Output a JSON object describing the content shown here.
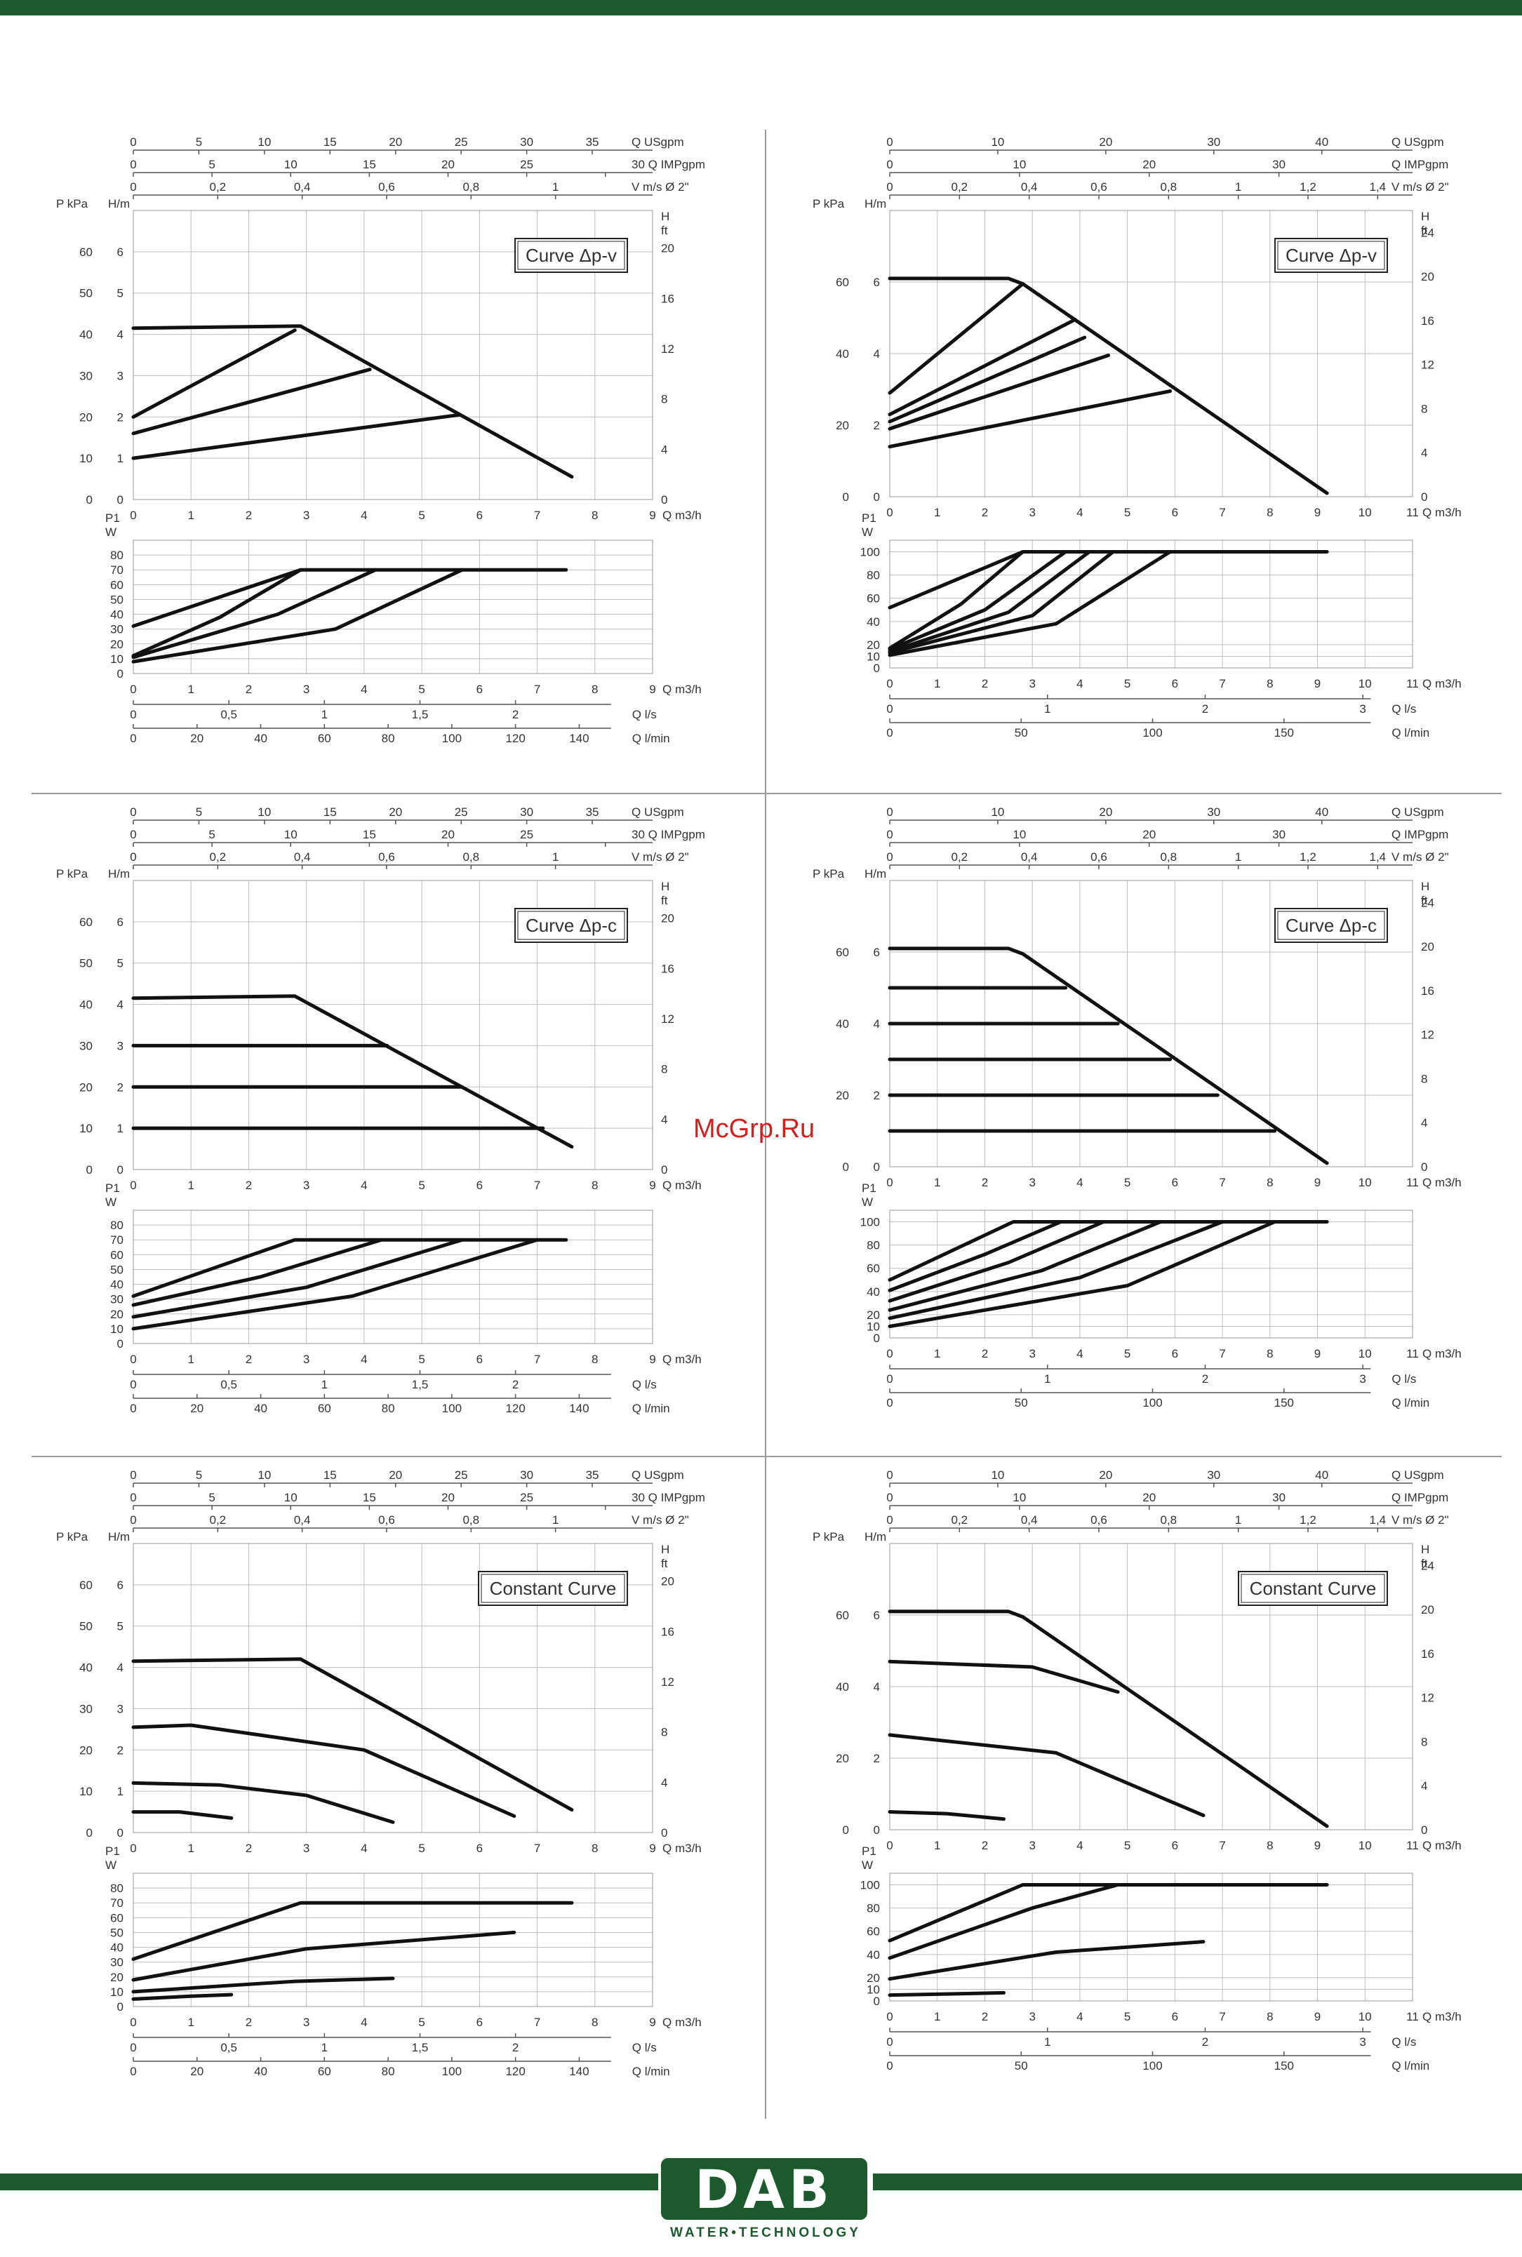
{
  "page": {
    "watermark": "McGrp.Ru",
    "brand": {
      "name": "DAB",
      "tagline": "WATER•TECHNOLOGY"
    },
    "colors": {
      "green": "#1c5a2e",
      "curve": "#111111",
      "grid": "#bdbdbd",
      "watermark": "#d21f1f"
    }
  },
  "labels": {
    "q_usgpm": "Q USgpm",
    "q_impgpm": "Q IMPgpm",
    "v": "V m/s Ø 2\"",
    "pkpa": "P kPa",
    "hm": "H/m",
    "h": "H",
    "ft": "ft",
    "qm3h": "Q m3/h",
    "p1": "P1",
    "w": "W",
    "qls": "Q l/s",
    "qlmin": "Q l/min"
  },
  "panel_types": {
    "small": {
      "q_max": 9,
      "q_ticks": [
        "0",
        "1",
        "2",
        "3",
        "4",
        "5",
        "6",
        "7",
        "8",
        "9"
      ],
      "usgpm_ticks": [
        "0",
        "5",
        "10",
        "15",
        "20",
        "25",
        "30",
        "35"
      ],
      "usgpm_max": 39.6,
      "imp_ticks": [
        "0",
        "5",
        "10",
        "15",
        "20",
        "25",
        "30"
      ],
      "imp_max": 33,
      "imp_last_prefix": "30",
      "v_ticks": [
        "0",
        "0,2",
        "0,4",
        "0,6",
        "0,8",
        "1"
      ],
      "v_max": 1.23,
      "p_ticks": [
        "0",
        "10",
        "20",
        "30",
        "40",
        "50",
        "60"
      ],
      "h_ticks": [
        "0",
        "1",
        "2",
        "3",
        "4",
        "5",
        "6"
      ],
      "h_max": 7,
      "ft_ticks": [
        "0",
        "4",
        "8",
        "12",
        "16",
        "20"
      ],
      "ft_max": 23,
      "p1_ticks": [
        "0",
        "10",
        "20",
        "30",
        "40",
        "50",
        "60",
        "70",
        "80"
      ],
      "p1_max": 90,
      "ls_ticks": [
        "0",
        "0,5",
        "1",
        "1,5",
        "2"
      ],
      "ls_max": 2.5,
      "lmin_ticks": [
        "0",
        "20",
        "40",
        "60",
        "80",
        "100",
        "120",
        "140"
      ],
      "lmin_max": 150
    },
    "large": {
      "q_max": 11,
      "q_ticks": [
        "0",
        "1",
        "2",
        "3",
        "4",
        "5",
        "6",
        "7",
        "8",
        "9",
        "10",
        "11"
      ],
      "usgpm_ticks": [
        "0",
        "10",
        "20",
        "30",
        "40"
      ],
      "usgpm_max": 48.4,
      "imp_ticks": [
        "0",
        "10",
        "20",
        "30"
      ],
      "imp_max": 40.3,
      "imp_last_prefix": "",
      "v_ticks": [
        "0",
        "0,2",
        "0,4",
        "0,6",
        "0,8",
        "1",
        "1,2",
        "1,4"
      ],
      "v_max": 1.5,
      "p_ticks": [
        "0",
        "20",
        "40",
        "60"
      ],
      "h_ticks": [
        "0",
        "2",
        "4",
        "6"
      ],
      "h_max": 8,
      "ft_ticks": [
        "0",
        "4",
        "8",
        "12",
        "16",
        "20",
        "24"
      ],
      "ft_max": 26,
      "p1_ticks": [
        "0",
        "10",
        "20",
        "40",
        "60",
        "80",
        "100"
      ],
      "p1_max": 110,
      "ls_ticks": [
        "0",
        "1",
        "2",
        "3"
      ],
      "ls_max": 3.05,
      "lmin_ticks": [
        "0",
        "50",
        "100",
        "150"
      ],
      "lmin_max": 183
    }
  },
  "chart_data": [
    {
      "type": "line",
      "panel": "small",
      "title": "Curve Δp-v",
      "head": [
        {
          "x": [
            0,
            2.9,
            7.6
          ],
          "y": [
            4.15,
            4.2,
            0.55
          ]
        },
        {
          "x": [
            0,
            2.8
          ],
          "y": [
            2.0,
            4.1
          ]
        },
        {
          "x": [
            0,
            4.1
          ],
          "y": [
            1.6,
            3.15
          ]
        },
        {
          "x": [
            0,
            5.65
          ],
          "y": [
            1.0,
            2.05
          ]
        }
      ],
      "power": [
        {
          "x": [
            0,
            2.9,
            7.5
          ],
          "y": [
            32,
            70,
            70
          ]
        },
        {
          "x": [
            0,
            1.5,
            2.9
          ],
          "y": [
            12,
            38,
            70
          ]
        },
        {
          "x": [
            0,
            2.5,
            4.2
          ],
          "y": [
            11,
            40,
            70
          ]
        },
        {
          "x": [
            0,
            3.5,
            5.7
          ],
          "y": [
            8,
            30,
            70
          ]
        }
      ]
    },
    {
      "type": "line",
      "panel": "large",
      "title": "Curve Δp-v",
      "head": [
        {
          "x": [
            0,
            2.5,
            2.8,
            9.2
          ],
          "y": [
            6.1,
            6.1,
            5.95,
            0.1
          ]
        },
        {
          "x": [
            0,
            2.8
          ],
          "y": [
            2.9,
            5.95
          ]
        },
        {
          "x": [
            0,
            3.9
          ],
          "y": [
            2.3,
            4.95
          ]
        },
        {
          "x": [
            0,
            4.1
          ],
          "y": [
            2.1,
            4.45
          ]
        },
        {
          "x": [
            0,
            4.6
          ],
          "y": [
            1.9,
            3.95
          ]
        },
        {
          "x": [
            0,
            5.9
          ],
          "y": [
            1.4,
            2.95
          ]
        }
      ],
      "power": [
        {
          "x": [
            0,
            2.8,
            9.2
          ],
          "y": [
            52,
            100,
            100
          ]
        },
        {
          "x": [
            0,
            1.5,
            2.8
          ],
          "y": [
            17,
            55,
            100
          ]
        },
        {
          "x": [
            0,
            2.0,
            3.7
          ],
          "y": [
            16,
            50,
            100
          ]
        },
        {
          "x": [
            0,
            2.5,
            4.2
          ],
          "y": [
            14,
            48,
            100
          ]
        },
        {
          "x": [
            0,
            3.0,
            4.7
          ],
          "y": [
            13,
            45,
            100
          ]
        },
        {
          "x": [
            0,
            3.5,
            5.9
          ],
          "y": [
            11,
            38,
            100
          ]
        }
      ]
    },
    {
      "type": "line",
      "panel": "small",
      "title": "Curve Δp-c",
      "head": [
        {
          "x": [
            0,
            2.8,
            7.6
          ],
          "y": [
            4.15,
            4.2,
            0.55
          ]
        },
        {
          "x": [
            0,
            4.4
          ],
          "y": [
            3.0,
            3.0
          ]
        },
        {
          "x": [
            0,
            5.7
          ],
          "y": [
            2.0,
            2.0
          ]
        },
        {
          "x": [
            0,
            7.1
          ],
          "y": [
            1.0,
            1.0
          ]
        }
      ],
      "power": [
        {
          "x": [
            0,
            2.8,
            7.5
          ],
          "y": [
            32,
            70,
            70
          ]
        },
        {
          "x": [
            0,
            2.2,
            4.3
          ],
          "y": [
            26,
            45,
            70
          ]
        },
        {
          "x": [
            0,
            3.0,
            5.7
          ],
          "y": [
            18,
            38,
            70
          ]
        },
        {
          "x": [
            0,
            3.8,
            7.0
          ],
          "y": [
            10,
            32,
            70
          ]
        }
      ]
    },
    {
      "type": "line",
      "panel": "large",
      "title": "Curve Δp-c",
      "head": [
        {
          "x": [
            0,
            2.5,
            2.8,
            9.2
          ],
          "y": [
            6.1,
            6.1,
            5.95,
            0.1
          ]
        },
        {
          "x": [
            0,
            3.7
          ],
          "y": [
            5.0,
            5.0
          ]
        },
        {
          "x": [
            0,
            4.8
          ],
          "y": [
            4.0,
            4.0
          ]
        },
        {
          "x": [
            0,
            5.9
          ],
          "y": [
            3.0,
            3.0
          ]
        },
        {
          "x": [
            0,
            6.9
          ],
          "y": [
            2.0,
            2.0
          ]
        },
        {
          "x": [
            0,
            8.1
          ],
          "y": [
            1.0,
            1.0
          ]
        }
      ],
      "power": [
        {
          "x": [
            0,
            2.6,
            9.2
          ],
          "y": [
            50,
            100,
            100
          ]
        },
        {
          "x": [
            0,
            2.0,
            3.6
          ],
          "y": [
            41,
            72,
            100
          ]
        },
        {
          "x": [
            0,
            2.5,
            4.5
          ],
          "y": [
            32,
            65,
            100
          ]
        },
        {
          "x": [
            0,
            3.2,
            5.7
          ],
          "y": [
            24,
            58,
            100
          ]
        },
        {
          "x": [
            0,
            4.0,
            7.0
          ],
          "y": [
            17,
            52,
            100
          ]
        },
        {
          "x": [
            0,
            5.0,
            8.1
          ],
          "y": [
            10,
            45,
            100
          ]
        }
      ]
    },
    {
      "type": "line",
      "panel": "small",
      "title": "Constant Curve",
      "head": [
        {
          "x": [
            0,
            2.9,
            7.6
          ],
          "y": [
            4.15,
            4.2,
            0.55
          ]
        },
        {
          "x": [
            0,
            1.0,
            4.0,
            6.6
          ],
          "y": [
            2.55,
            2.6,
            2.0,
            0.4
          ]
        },
        {
          "x": [
            0,
            1.5,
            3.0,
            4.5
          ],
          "y": [
            1.2,
            1.15,
            0.9,
            0.25
          ]
        },
        {
          "x": [
            0,
            0.8,
            1.7
          ],
          "y": [
            0.5,
            0.5,
            0.35
          ]
        }
      ],
      "power": [
        {
          "x": [
            0,
            2.9,
            7.6
          ],
          "y": [
            32,
            70,
            70
          ]
        },
        {
          "x": [
            0,
            3.0,
            6.6
          ],
          "y": [
            18,
            39,
            50
          ]
        },
        {
          "x": [
            0,
            2.8,
            4.5
          ],
          "y": [
            10,
            17,
            19
          ]
        },
        {
          "x": [
            0,
            1.0,
            1.7
          ],
          "y": [
            5,
            7,
            8
          ]
        }
      ]
    },
    {
      "type": "line",
      "panel": "large",
      "title": "Constant Curve",
      "head": [
        {
          "x": [
            0,
            2.5,
            2.8,
            9.2
          ],
          "y": [
            6.1,
            6.1,
            5.95,
            0.1
          ]
        },
        {
          "x": [
            0,
            3.0,
            4.8
          ],
          "y": [
            4.7,
            4.55,
            3.85
          ]
        },
        {
          "x": [
            0,
            3.5,
            6.6
          ],
          "y": [
            2.65,
            2.15,
            0.4
          ]
        },
        {
          "x": [
            0,
            1.2,
            2.4
          ],
          "y": [
            0.5,
            0.45,
            0.3
          ]
        }
      ],
      "power": [
        {
          "x": [
            0,
            2.8,
            9.2
          ],
          "y": [
            52,
            100,
            100
          ]
        },
        {
          "x": [
            0,
            3.0,
            4.8
          ],
          "y": [
            37,
            80,
            100
          ]
        },
        {
          "x": [
            0,
            3.5,
            6.6
          ],
          "y": [
            19,
            42,
            51
          ]
        },
        {
          "x": [
            0,
            1.2,
            2.4
          ],
          "y": [
            5,
            6,
            7
          ]
        }
      ]
    }
  ]
}
